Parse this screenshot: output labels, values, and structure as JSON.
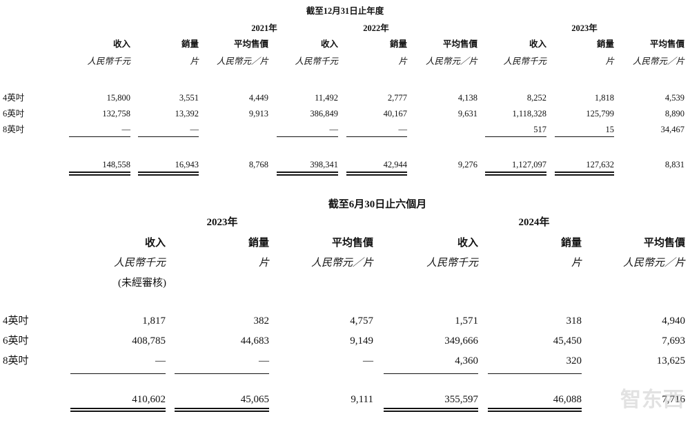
{
  "annual": {
    "title": "截至12月31日止年度",
    "years": [
      "2021年",
      "2022年",
      "2023年"
    ],
    "headers": [
      "收入",
      "銷量",
      "平均售價"
    ],
    "units": [
      "人民幣千元",
      "片",
      "人民幣元／片"
    ],
    "rows": [
      {
        "label": "4英吋",
        "values": [
          "15,800",
          "3,551",
          "4,449",
          "11,492",
          "2,777",
          "4,138",
          "8,252",
          "1,818",
          "4,539"
        ]
      },
      {
        "label": "6英吋",
        "values": [
          "132,758",
          "13,392",
          "9,913",
          "386,849",
          "40,167",
          "9,631",
          "1,118,328",
          "125,799",
          "8,890"
        ]
      },
      {
        "label": "8英吋",
        "values": [
          "—",
          "—",
          "",
          "—",
          "—",
          "",
          "517",
          "15",
          "34,467"
        ]
      }
    ],
    "total": [
      "148,558",
      "16,943",
      "8,768",
      "398,341",
      "42,944",
      "9,276",
      "1,127,097",
      "127,632",
      "8,831"
    ]
  },
  "interim": {
    "title": "截至6月30日止六個月",
    "years": [
      "2023年",
      "2024年"
    ],
    "headers": [
      "收入",
      "銷量",
      "平均售價"
    ],
    "units": [
      "人民幣千元",
      "片",
      "人民幣元／片"
    ],
    "note": "(未經審核)",
    "rows": [
      {
        "label": "4英吋",
        "values": [
          "1,817",
          "382",
          "4,757",
          "1,571",
          "318",
          "4,940"
        ]
      },
      {
        "label": "6英吋",
        "values": [
          "408,785",
          "44,683",
          "9,149",
          "349,666",
          "45,450",
          "7,693"
        ]
      },
      {
        "label": "8英吋",
        "values": [
          "—",
          "—",
          "—",
          "4,360",
          "320",
          "13,625"
        ]
      }
    ],
    "total": [
      "410,602",
      "45,065",
      "9,111",
      "355,597",
      "46,088",
      "7,716"
    ]
  },
  "watermark": "智东西"
}
